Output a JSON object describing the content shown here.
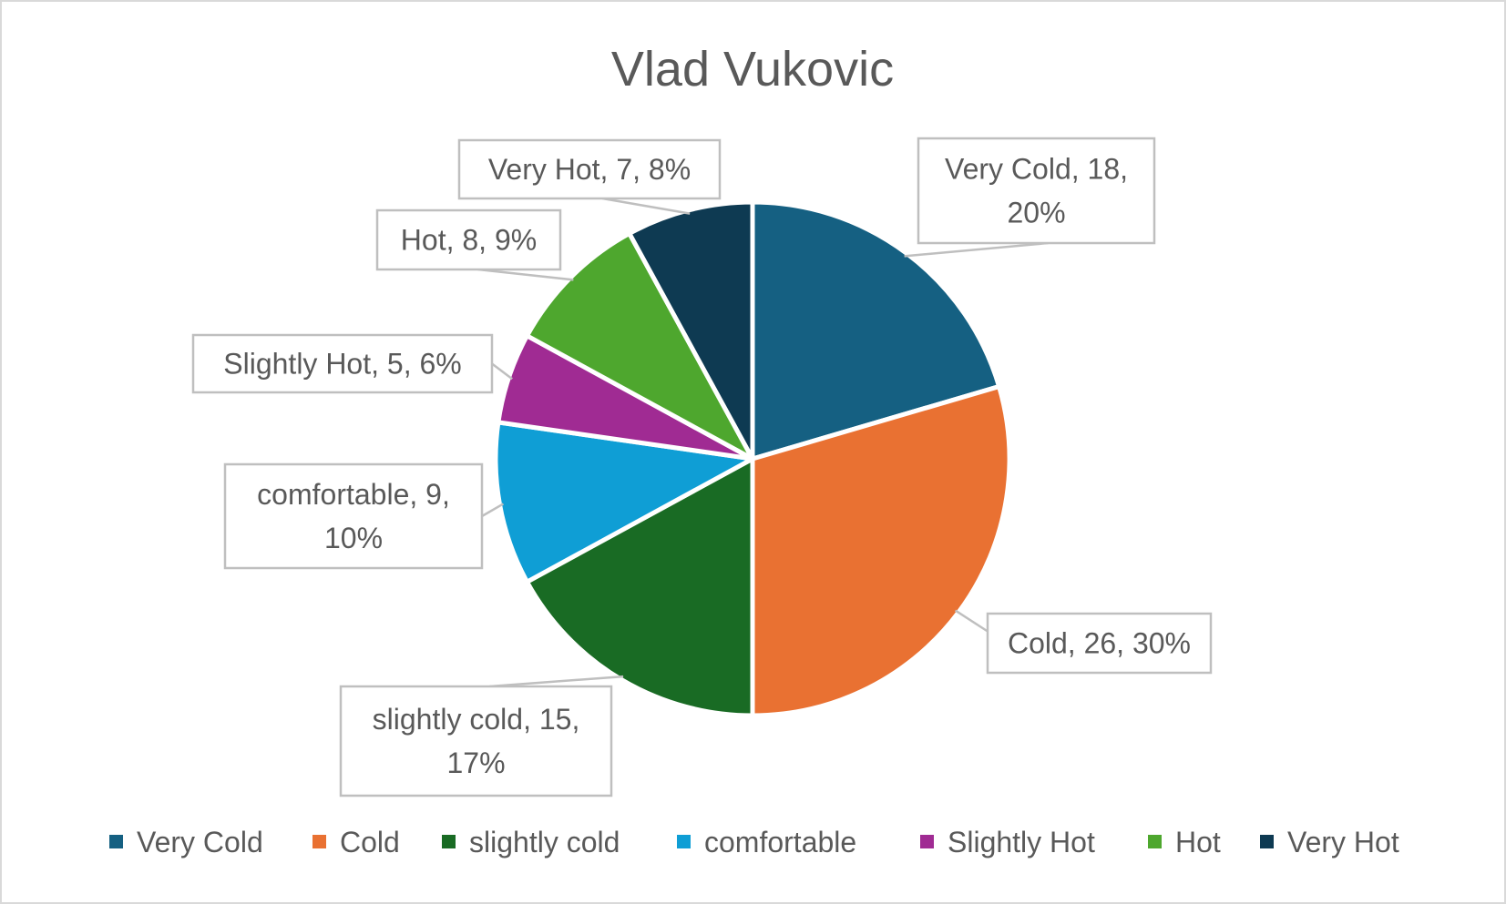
{
  "chart_data": {
    "type": "pie",
    "title": "Vlad Vukovic",
    "categories": [
      "Very Cold",
      "Cold",
      "slightly cold",
      "comfortable",
      "Slightly Hot",
      "Hot",
      "Very Hot"
    ],
    "values": [
      18,
      26,
      15,
      9,
      5,
      8,
      7
    ],
    "percentages": [
      "20%",
      "30%",
      "17%",
      "10%",
      "6%",
      "9%",
      "8%"
    ],
    "data_labels": [
      [
        "Very Cold, 18,",
        "20%"
      ],
      [
        "Cold, 26, 30%"
      ],
      [
        "slightly cold, 15,",
        "17%"
      ],
      [
        "comfortable, 9,",
        "10%"
      ],
      [
        "Slightly Hot, 5, 6%"
      ],
      [
        "Hot, 8, 9%"
      ],
      [
        "Very Hot, 7, 8%"
      ]
    ],
    "colors": [
      "#156082",
      "#E97132",
      "#196B24",
      "#0F9ED5",
      "#A02B93",
      "#4EA72E",
      "#0E3A52"
    ],
    "legend_position": "bottom",
    "start_angle": "12 o'clock",
    "direction": "clockwise"
  }
}
